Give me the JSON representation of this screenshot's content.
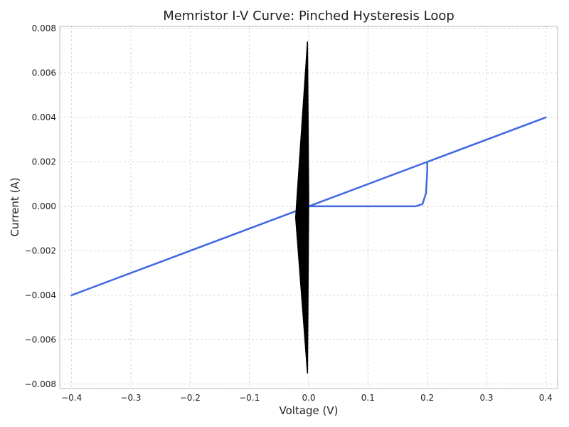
{
  "chart_data": {
    "type": "line",
    "title": "Memristor I-V Curve: Pinched Hysteresis Loop",
    "xlabel": "Voltage (V)",
    "ylabel": "Current (A)",
    "xlim": [
      -0.42,
      0.42
    ],
    "ylim": [
      -0.0082,
      0.0081
    ],
    "grid": true,
    "xticks": [
      -0.4,
      -0.3,
      -0.2,
      -0.1,
      0.0,
      0.1,
      0.2,
      0.3,
      0.4
    ],
    "xtick_labels": [
      "−0.4",
      "−0.3",
      "−0.2",
      "−0.1",
      "0.0",
      "0.1",
      "0.2",
      "0.3",
      "0.4"
    ],
    "yticks": [
      -0.008,
      -0.006,
      -0.004,
      -0.002,
      0.0,
      0.002,
      0.004,
      0.006,
      0.008
    ],
    "ytick_labels": [
      "−0.008",
      "−0.006",
      "−0.004",
      "−0.002",
      "0.000",
      "0.002",
      "0.004",
      "0.006",
      "0.008"
    ],
    "series": [
      {
        "color": "#4169e1",
        "points": [
          [
            -0.4,
            -0.004
          ],
          [
            0.0,
            0.0
          ],
          [
            0.4,
            0.004
          ],
          [
            0.2,
            0.002
          ],
          [
            0.2,
            0.0016
          ],
          [
            0.198,
            0.0006
          ],
          [
            0.192,
            0.0001
          ],
          [
            0.18,
            0.0
          ],
          [
            0.0,
            0.0
          ],
          [
            -0.4,
            -0.004
          ]
        ]
      },
      {
        "color": "#000000",
        "points": [
          [
            -0.002,
            0.0074
          ],
          [
            -0.022,
            -0.0005
          ],
          [
            -0.002,
            -0.0075
          ],
          [
            0.0,
            0.0004
          ],
          [
            -0.002,
            0.0074
          ]
        ]
      }
    ]
  }
}
